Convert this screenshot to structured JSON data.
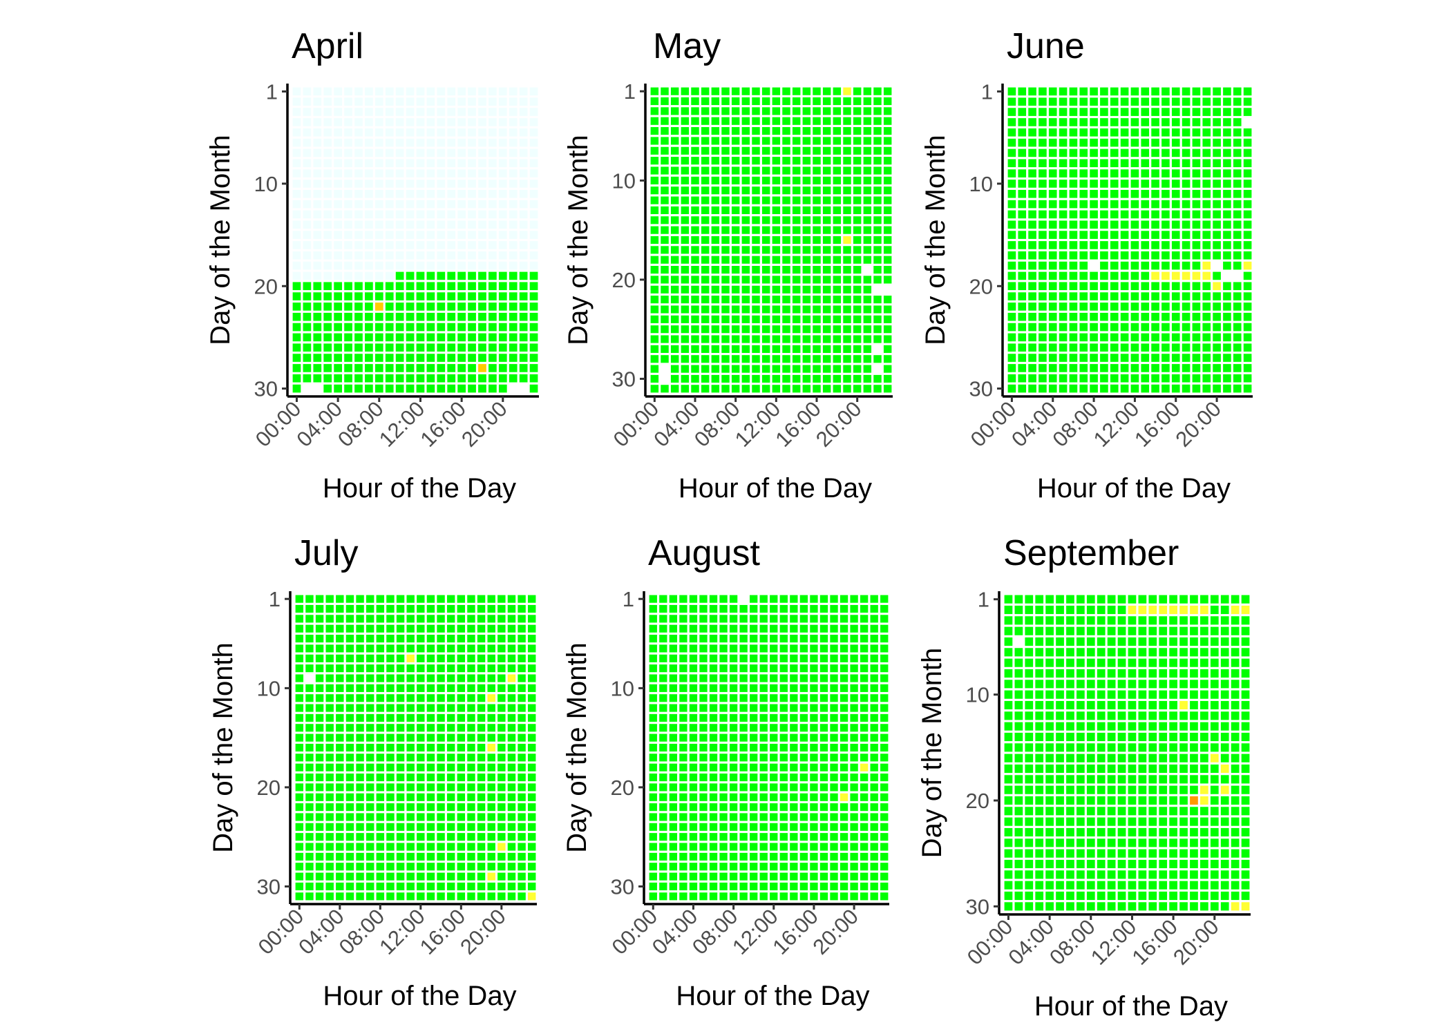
{
  "chart_data": {
    "type": "heatmap",
    "xlabel": "Hour of the Day",
    "ylabel": "Day of the Month",
    "x_tick_labels": [
      "00:00",
      "04:00",
      "08:00",
      "12:00",
      "16:00",
      "20:00"
    ],
    "x_tick_hours": [
      0,
      4,
      8,
      12,
      16,
      20
    ],
    "y_tick_labels": [
      "1",
      "10",
      "20",
      "30"
    ],
    "y_tick_days": [
      1,
      10,
      20,
      30
    ],
    "hours": 24,
    "default_color": "#00ff00",
    "missing_color": "#ffffff",
    "colors": {
      "ok": "#00ff00",
      "warn": "#ffff33",
      "alert": "#ff9900",
      "empty": "#f0ffff",
      "missing": "#ffffff"
    },
    "panels": [
      {
        "month": "April",
        "days": 30,
        "fill_ranges": [
          {
            "color": "#f0ffff",
            "day_from": 1,
            "day_to": 18,
            "hour_from": 0,
            "hour_to": 23
          },
          {
            "color": "#f0ffff",
            "day_from": 19,
            "day_to": 19,
            "hour_from": 0,
            "hour_to": 9
          }
        ],
        "cells": [
          {
            "day": 22,
            "hour": 8,
            "color": "#ffcc00"
          },
          {
            "day": 28,
            "hour": 18,
            "color": "#ffcc00"
          },
          {
            "day": 30,
            "hour": 1,
            "color": "#ffffff"
          },
          {
            "day": 30,
            "hour": 2,
            "color": "#ffffff"
          },
          {
            "day": 30,
            "hour": 21,
            "color": "#ffffff"
          },
          {
            "day": 30,
            "hour": 22,
            "color": "#ffffff"
          }
        ]
      },
      {
        "month": "May",
        "days": 31,
        "fill_ranges": [],
        "cells": [
          {
            "day": 1,
            "hour": 19,
            "color": "#ffff33"
          },
          {
            "day": 16,
            "hour": 19,
            "color": "#ffff33"
          },
          {
            "day": 19,
            "hour": 21,
            "color": "#ffffff"
          },
          {
            "day": 21,
            "hour": 22,
            "color": "#ffffff"
          },
          {
            "day": 21,
            "hour": 23,
            "color": "#ffffff"
          },
          {
            "day": 27,
            "hour": 22,
            "color": "#ffffff"
          },
          {
            "day": 29,
            "hour": 22,
            "color": "#ffffff"
          },
          {
            "day": 29,
            "hour": 1,
            "color": "#ffffff"
          },
          {
            "day": 30,
            "hour": 1,
            "color": "#ffffff"
          }
        ]
      },
      {
        "month": "June",
        "days": 30,
        "fill_ranges": [],
        "cells": [
          {
            "day": 4,
            "hour": 23,
            "color": "#ffffff"
          },
          {
            "day": 18,
            "hour": 8,
            "color": "#ffffff"
          },
          {
            "day": 19,
            "hour": 14,
            "color": "#ffff33"
          },
          {
            "day": 19,
            "hour": 15,
            "color": "#ffff33"
          },
          {
            "day": 19,
            "hour": 16,
            "color": "#ffff33"
          },
          {
            "day": 19,
            "hour": 17,
            "color": "#ffff33"
          },
          {
            "day": 19,
            "hour": 18,
            "color": "#ffff33"
          },
          {
            "day": 18,
            "hour": 19,
            "color": "#ffff33"
          },
          {
            "day": 19,
            "hour": 19,
            "color": "#ffff33"
          },
          {
            "day": 18,
            "hour": 20,
            "color": "#ffffff"
          },
          {
            "day": 20,
            "hour": 20,
            "color": "#ffff33"
          },
          {
            "day": 19,
            "hour": 21,
            "color": "#ffffff"
          },
          {
            "day": 19,
            "hour": 22,
            "color": "#ffffff"
          },
          {
            "day": 18,
            "hour": 23,
            "color": "#ffff33"
          }
        ]
      },
      {
        "month": "July",
        "days": 31,
        "fill_ranges": [],
        "cells": [
          {
            "day": 7,
            "hour": 11,
            "color": "#ffff33"
          },
          {
            "day": 9,
            "hour": 1,
            "color": "#ffffff"
          },
          {
            "day": 9,
            "hour": 21,
            "color": "#ffff33"
          },
          {
            "day": 11,
            "hour": 19,
            "color": "#ffff33"
          },
          {
            "day": 16,
            "hour": 19,
            "color": "#ffff33"
          },
          {
            "day": 26,
            "hour": 20,
            "color": "#ffff33"
          },
          {
            "day": 29,
            "hour": 19,
            "color": "#ffff33"
          },
          {
            "day": 31,
            "hour": 23,
            "color": "#ffff33"
          }
        ]
      },
      {
        "month": "August",
        "days": 31,
        "fill_ranges": [],
        "cells": [
          {
            "day": 1,
            "hour": 9,
            "color": "#ffffff"
          },
          {
            "day": 18,
            "hour": 21,
            "color": "#ffff33"
          },
          {
            "day": 21,
            "hour": 19,
            "color": "#ffff33"
          }
        ]
      },
      {
        "month": "September",
        "days": 30,
        "fill_ranges": [
          {
            "color": "#ffff33",
            "day_from": 2,
            "day_to": 2,
            "hour_from": 12,
            "hour_to": 19
          }
        ],
        "cells": [
          {
            "day": 2,
            "hour": 22,
            "color": "#ffff33"
          },
          {
            "day": 2,
            "hour": 23,
            "color": "#ffff33"
          },
          {
            "day": 5,
            "hour": 1,
            "color": "#ffffff"
          },
          {
            "day": 11,
            "hour": 17,
            "color": "#ffff33"
          },
          {
            "day": 16,
            "hour": 20,
            "color": "#ffff33"
          },
          {
            "day": 17,
            "hour": 21,
            "color": "#ffff33"
          },
          {
            "day": 19,
            "hour": 19,
            "color": "#ffff33"
          },
          {
            "day": 19,
            "hour": 21,
            "color": "#ffff33"
          },
          {
            "day": 20,
            "hour": 18,
            "color": "#ff9900"
          },
          {
            "day": 20,
            "hour": 19,
            "color": "#ffff33"
          },
          {
            "day": 30,
            "hour": 22,
            "color": "#ffff33"
          },
          {
            "day": 30,
            "hour": 23,
            "color": "#ffff33"
          }
        ]
      }
    ]
  }
}
